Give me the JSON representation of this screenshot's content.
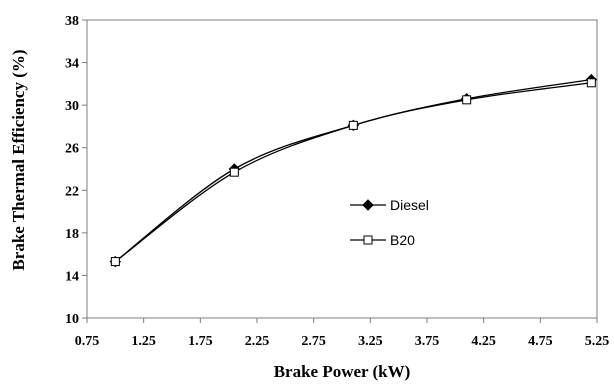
{
  "chart_data": {
    "type": "line",
    "title": "",
    "xlabel": "Brake Power (kW)",
    "ylabel": "Brake Thermal Efficiency (%)",
    "xlim": [
      0.75,
      5.25
    ],
    "ylim": [
      10,
      38
    ],
    "x_ticks": [
      "0.75",
      "1.25",
      "1.75",
      "2.25",
      "2.75",
      "3.25",
      "3.75",
      "4.25",
      "4.75",
      "5.25"
    ],
    "y_ticks": [
      "10",
      "14",
      "18",
      "22",
      "26",
      "30",
      "34",
      "38"
    ],
    "grid": false,
    "legend_position": "center-right",
    "series": [
      {
        "name": "Diesel",
        "marker": "filled-diamond",
        "color": "#000000",
        "x": [
          1.0,
          2.05,
          3.1,
          4.1,
          5.2
        ],
        "y": [
          15.3,
          24.0,
          28.1,
          30.6,
          32.4
        ]
      },
      {
        "name": "B20",
        "marker": "open-square",
        "color": "#000000",
        "x": [
          1.0,
          2.05,
          3.1,
          4.1,
          5.2
        ],
        "y": [
          15.3,
          23.7,
          28.1,
          30.5,
          32.1
        ]
      }
    ]
  }
}
